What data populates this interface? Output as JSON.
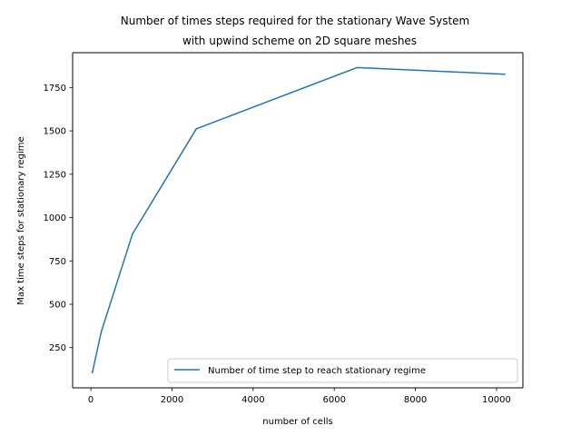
{
  "chart_data": {
    "type": "line",
    "title_lines": [
      "Number of times steps required for the stationary Wave System",
      "with upwind scheme on 2D square meshes"
    ],
    "xlabel": "number of cells",
    "ylabel": "Max time steps for stationary regime",
    "xlim": [
      -450,
      10650
    ],
    "ylim": [
      18,
      1951
    ],
    "xticks": [
      0,
      2000,
      4000,
      6000,
      8000,
      10000
    ],
    "xtick_labels": [
      "0",
      "2000",
      "4000",
      "6000",
      "8000",
      "10000"
    ],
    "yticks": [
      250,
      500,
      750,
      1000,
      1250,
      1500,
      1750
    ],
    "ytick_labels": [
      "250",
      "500",
      "750",
      "1000",
      "1250",
      "1500",
      "1750"
    ],
    "grid": false,
    "legend_position": "lower right",
    "series": [
      {
        "name": "Number of time step to reach stationary regime",
        "color": "#1f77b4",
        "x": [
          36,
          256,
          1024,
          2601,
          6561,
          10201
        ],
        "y": [
          106,
          340,
          905,
          1512,
          1865,
          1827
        ]
      }
    ]
  }
}
